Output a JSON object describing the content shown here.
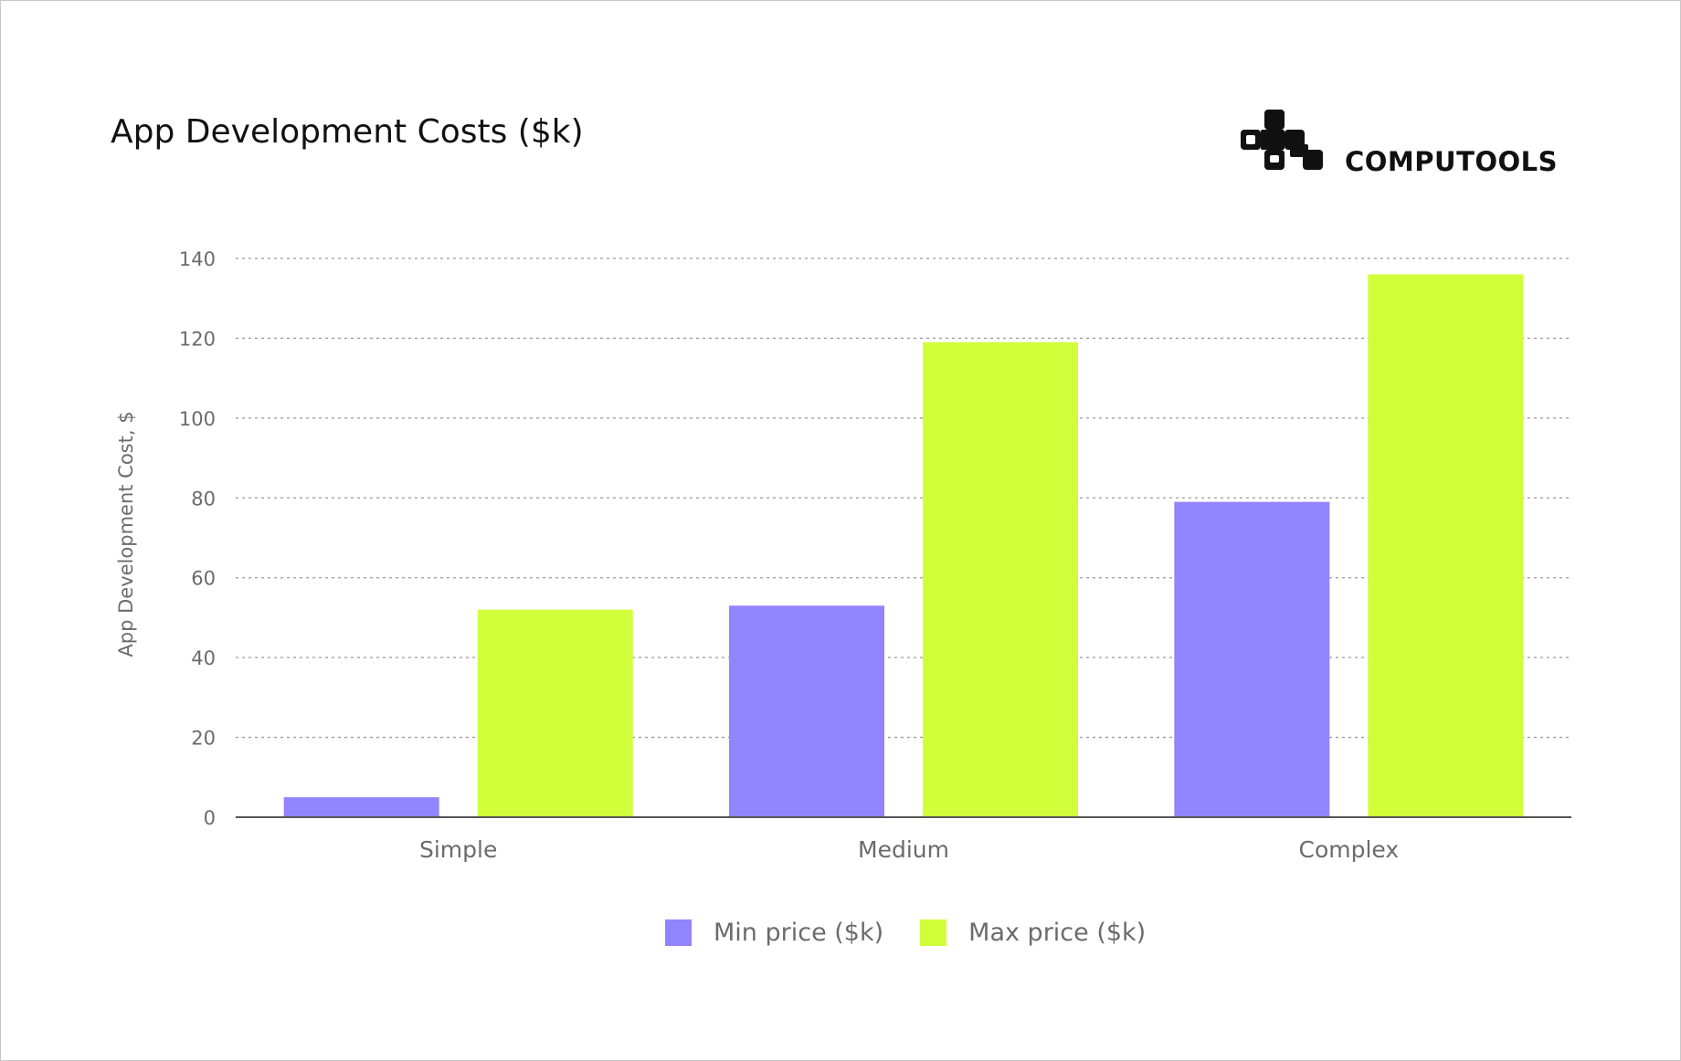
{
  "title": "App Development Costs ($k)",
  "brand": {
    "name": "COMPUTOOLS",
    "logo_icon": "computools-logo-icon"
  },
  "chart_data": {
    "type": "bar",
    "categories": [
      "Simple",
      "Medium",
      "Complex"
    ],
    "series": [
      {
        "name": "Min price ($k)",
        "values": [
          5,
          53,
          79
        ],
        "color": "#9184fe"
      },
      {
        "name": "Max price ($k)",
        "values": [
          52,
          119,
          136
        ],
        "color": "#d0ff3a"
      }
    ],
    "ylabel": "App Development Cost, $",
    "xlabel": "",
    "ylim": [
      0,
      140
    ],
    "yticks": [
      0,
      20,
      40,
      60,
      80,
      100,
      120,
      140
    ],
    "grid": true,
    "grid_style": "dotted",
    "legend_position": "bottom-center"
  },
  "colors": {
    "axis": "#555555",
    "grid": "#9a9a9a",
    "text_muted": "#6b6b6b"
  }
}
